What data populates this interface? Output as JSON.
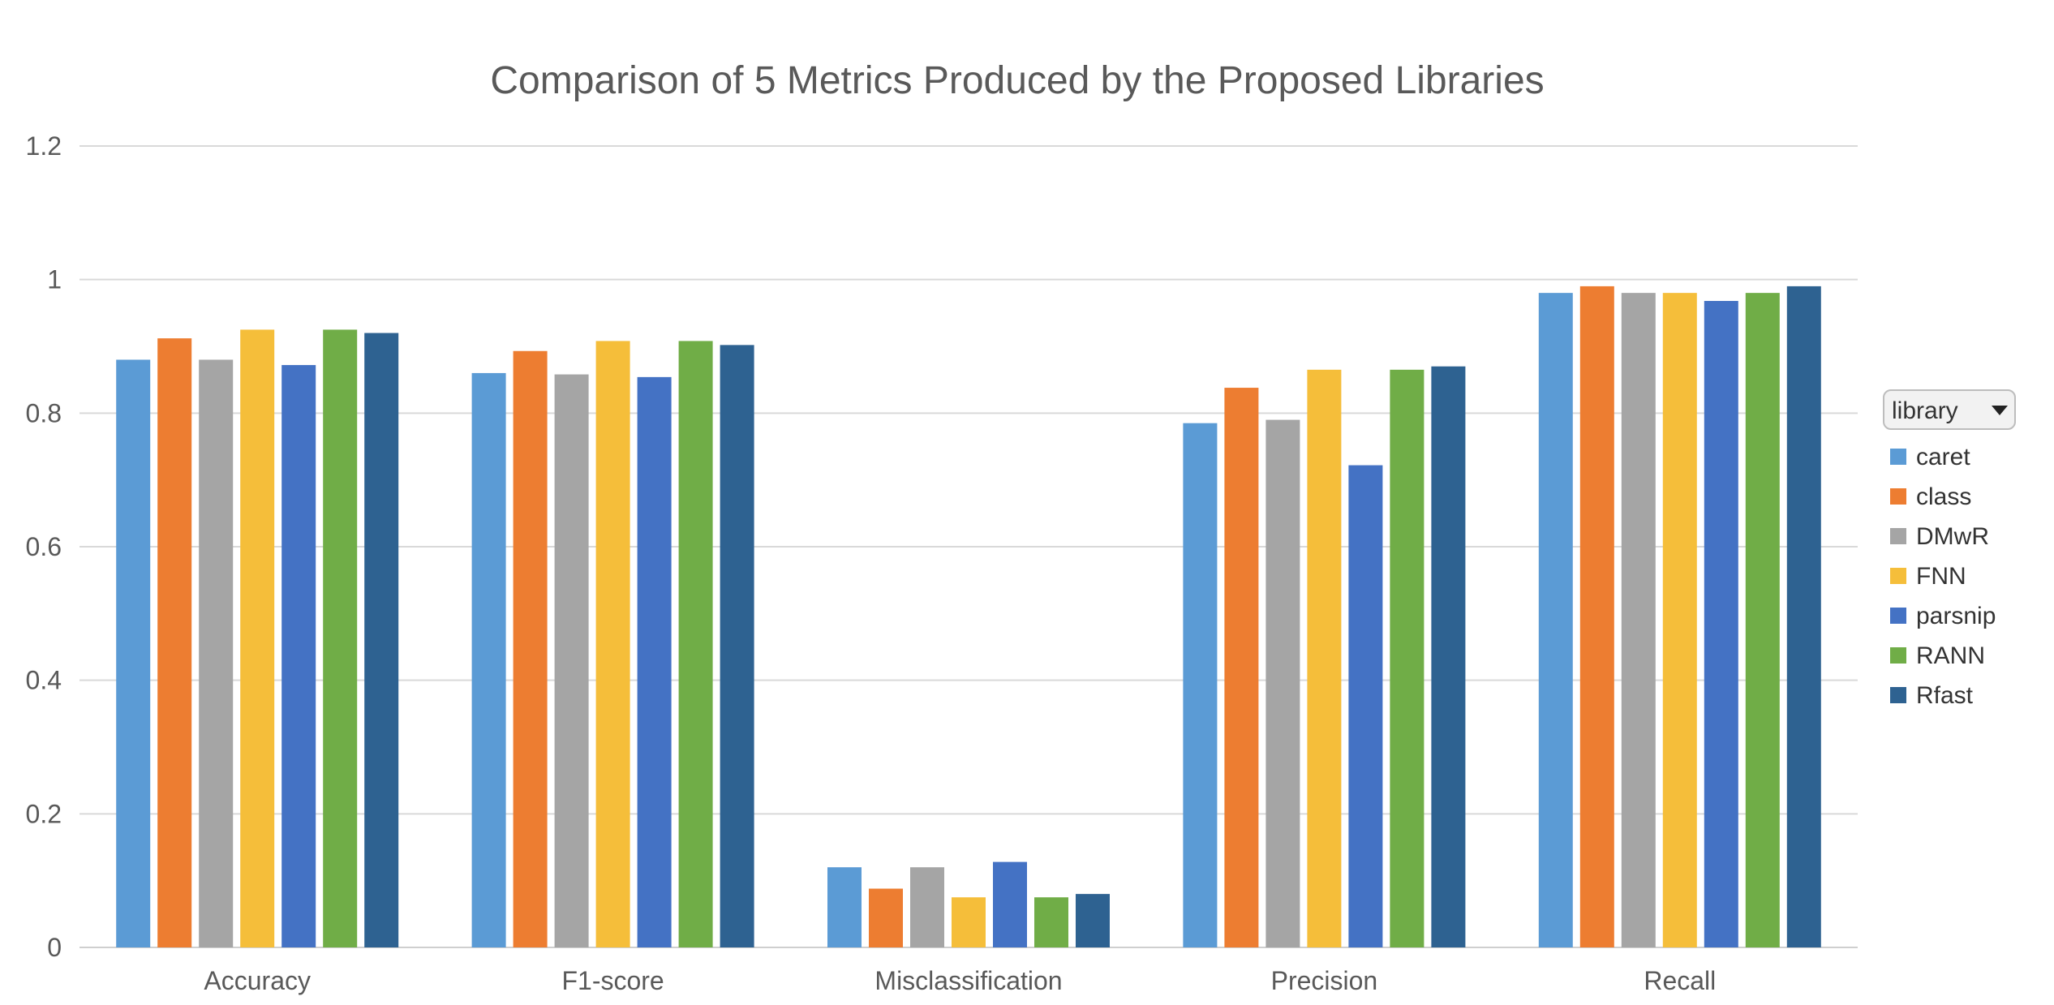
{
  "colors": {
    "background": "#ffffff",
    "grid": "#d9d9d9",
    "axis": "#cfcfcf",
    "text": "#595959",
    "title": "#595959",
    "legend_button_bg": "#f2f2f2",
    "legend_button_border": "#bdbdbd"
  },
  "legend": {
    "title": "library",
    "dropdown_icon": "triangle-down",
    "placement": "right"
  },
  "chart_data": {
    "type": "bar",
    "title": "Comparison of 5 Metrics Produced by the Proposed Libraries",
    "xlabel": "",
    "ylabel": "",
    "ylim": [
      0,
      1.2
    ],
    "yticks": [
      0,
      0.2,
      0.4,
      0.6,
      0.8,
      1,
      1.2
    ],
    "ytick_labels": [
      "0",
      "0.2",
      "0.4",
      "0.6",
      "0.8",
      "1",
      "1.2"
    ],
    "grid": true,
    "legend_placement": "right",
    "categories": [
      "Accuracy",
      "F1-score",
      "Misclassification",
      "Precision",
      "Recall"
    ],
    "series": [
      {
        "name": "caret",
        "color": "#5b9bd5",
        "values": [
          0.88,
          0.86,
          0.12,
          0.785,
          0.98
        ]
      },
      {
        "name": "class",
        "color": "#ed7d31",
        "values": [
          0.912,
          0.893,
          0.088,
          0.838,
          0.99
        ]
      },
      {
        "name": "DMwR",
        "color": "#a5a5a5",
        "values": [
          0.88,
          0.858,
          0.12,
          0.79,
          0.98
        ]
      },
      {
        "name": "FNN",
        "color": "#f5be3a",
        "values": [
          0.925,
          0.908,
          0.075,
          0.865,
          0.98
        ]
      },
      {
        "name": "parsnip",
        "color": "#4472c4",
        "values": [
          0.872,
          0.854,
          0.128,
          0.722,
          0.968
        ]
      },
      {
        "name": "RANN",
        "color": "#70ad47",
        "values": [
          0.925,
          0.908,
          0.075,
          0.865,
          0.98
        ]
      },
      {
        "name": "Rfast",
        "color": "#2e6291",
        "values": [
          0.92,
          0.902,
          0.08,
          0.87,
          0.99
        ]
      }
    ]
  }
}
